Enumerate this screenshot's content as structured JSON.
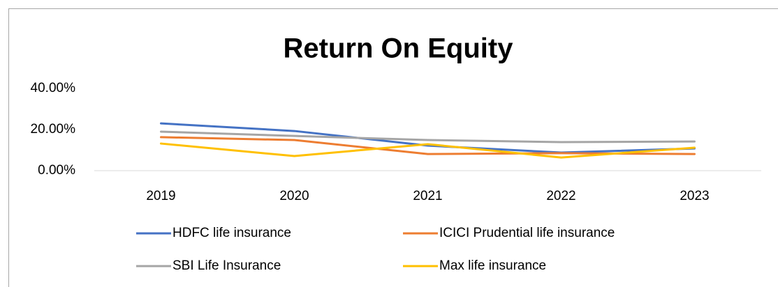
{
  "chart_data": {
    "type": "line",
    "title": "Return On Equity",
    "categories": [
      "2019",
      "2020",
      "2021",
      "2022",
      "2023"
    ],
    "series": [
      {
        "name": "HDFC life insurance",
        "color": "#4472c4",
        "values": [
          23.0,
          19.3,
          12.2,
          8.8,
          10.8
        ]
      },
      {
        "name": "ICICI Prudential life insurance",
        "color": "#ed7d31",
        "values": [
          16.3,
          14.9,
          8.1,
          8.5,
          8.1
        ]
      },
      {
        "name": "SBI Life Insurance",
        "color": "#a5a5a5",
        "values": [
          19.0,
          16.9,
          14.9,
          13.9,
          14.2
        ]
      },
      {
        "name": "Max life insurance",
        "color": "#ffc000",
        "values": [
          13.2,
          7.1,
          12.9,
          6.4,
          11.2
        ]
      }
    ],
    "ylim": [
      0,
      40
    ],
    "yticks": [
      {
        "value": 0,
        "label": "0.00%"
      },
      {
        "value": 20,
        "label": "20.00%"
      },
      {
        "value": 40,
        "label": "40.00%"
      }
    ],
    "grid": false
  }
}
